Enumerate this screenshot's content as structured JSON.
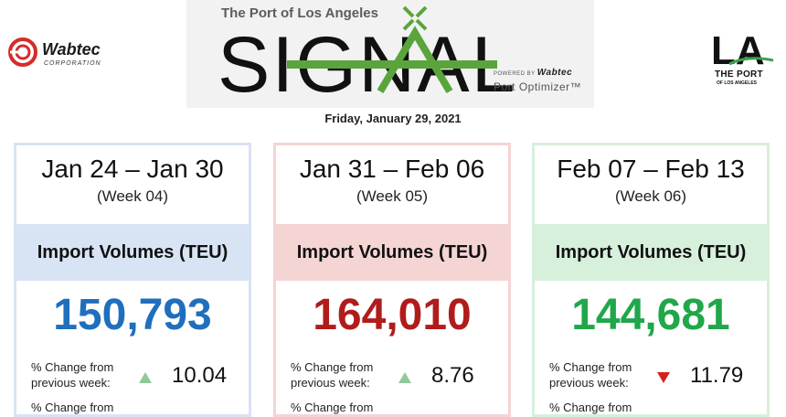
{
  "header": {
    "wabtec_logo": {
      "name": "Wabtec",
      "subtitle": "CORPORATION"
    },
    "signal": {
      "top_text": "The Port of Los Angeles",
      "wordmark": "SIGNAL",
      "powered_by": "POWERED BY",
      "powered_brand": "Wabtec",
      "product": "Port Optimizer™"
    },
    "la_logo": {
      "mark": "LA",
      "line1": "THE PORT",
      "line2": "OF LOS ANGELES"
    },
    "date": "Friday, January 29, 2021"
  },
  "colors": {
    "blue": "#1f6fbd",
    "red": "#b01c1c",
    "green": "#1fa74a",
    "wabtec_red": "#d62b2b",
    "signal_green": "#5aa43c"
  },
  "cards": [
    {
      "range": "Jan 24 – Jan 30",
      "week": "(Week 04)",
      "band_label": "Import Volumes (TEU)",
      "value": "150,793",
      "change1_label_a": "% Change from",
      "change1_label_b": "previous week:",
      "change1_value": "10.04",
      "change1_direction": "up",
      "change2_label_a": "% Change from"
    },
    {
      "range": "Jan 31 – Feb 06",
      "week": "(Week 05)",
      "band_label": "Import Volumes (TEU)",
      "value": "164,010",
      "change1_label_a": "% Change from",
      "change1_label_b": "previous week:",
      "change1_value": "8.76",
      "change1_direction": "up",
      "change2_label_a": "% Change from"
    },
    {
      "range": "Feb 07 – Feb 13",
      "week": "(Week 06)",
      "band_label": "Import Volumes (TEU)",
      "value": "144,681",
      "change1_label_a": "% Change from",
      "change1_label_b": "previous week:",
      "change1_value": "11.79",
      "change1_direction": "down",
      "change2_label_a": "% Change from"
    }
  ]
}
